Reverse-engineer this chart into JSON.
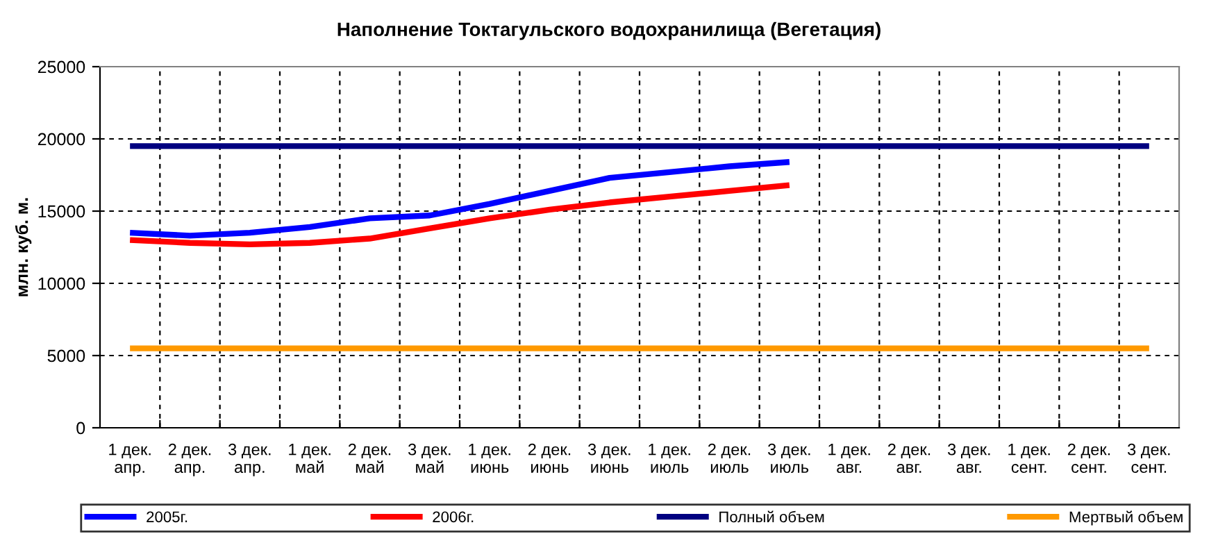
{
  "chart_data": {
    "type": "line",
    "title": "Наполнение Токтагульского водохранилища (Вегетация)",
    "ylabel": "млн. куб. м.",
    "categories": [
      "1 дек.\nапр.",
      "2 дек.\nапр.",
      "3 дек.\nапр.",
      "1 дек.\nмай",
      "2 дек.\nмай",
      "3 дек.\nмай",
      "1 дек.\nиюнь",
      "2 дек.\nиюнь",
      "3 дек.\nиюнь",
      "1 дек.\nиюль",
      "2 дек.\nиюль",
      "3 дек.\nиюль",
      "1 дек.\nавг.",
      "2 дек.\nавг.",
      "3 дек.\nавг.",
      "1 дек.\nсент.",
      "2 дек.\nсент.",
      "3 дек.\nсент."
    ],
    "series": [
      {
        "name": "2005г.",
        "color": "#0000ff",
        "values": [
          13500,
          13300,
          13500,
          13900,
          14500,
          14700,
          15500,
          16400,
          17300,
          17700,
          18100,
          18400,
          null,
          null,
          null,
          null,
          null,
          null
        ]
      },
      {
        "name": "2006г.",
        "color": "#ff0000",
        "values": [
          13000,
          12800,
          12700,
          12800,
          13100,
          13800,
          14500,
          15100,
          15600,
          16000,
          16400,
          16800,
          null,
          null,
          null,
          null,
          null,
          null
        ]
      },
      {
        "name": "Полный объем",
        "color": "#000080",
        "values": [
          19500,
          19500,
          19500,
          19500,
          19500,
          19500,
          19500,
          19500,
          19500,
          19500,
          19500,
          19500,
          19500,
          19500,
          19500,
          19500,
          19500,
          19500
        ]
      },
      {
        "name": "Мертвый объем",
        "color": "#ff9900",
        "values": [
          5500,
          5500,
          5500,
          5500,
          5500,
          5500,
          5500,
          5500,
          5500,
          5500,
          5500,
          5500,
          5500,
          5500,
          5500,
          5500,
          5500,
          5500
        ]
      }
    ],
    "ylim": [
      0,
      25000
    ],
    "yticks": [
      0,
      5000,
      10000,
      15000,
      20000,
      25000
    ],
    "grid": true,
    "legend": "bottom",
    "marker": "none",
    "line_style": "solid"
  }
}
